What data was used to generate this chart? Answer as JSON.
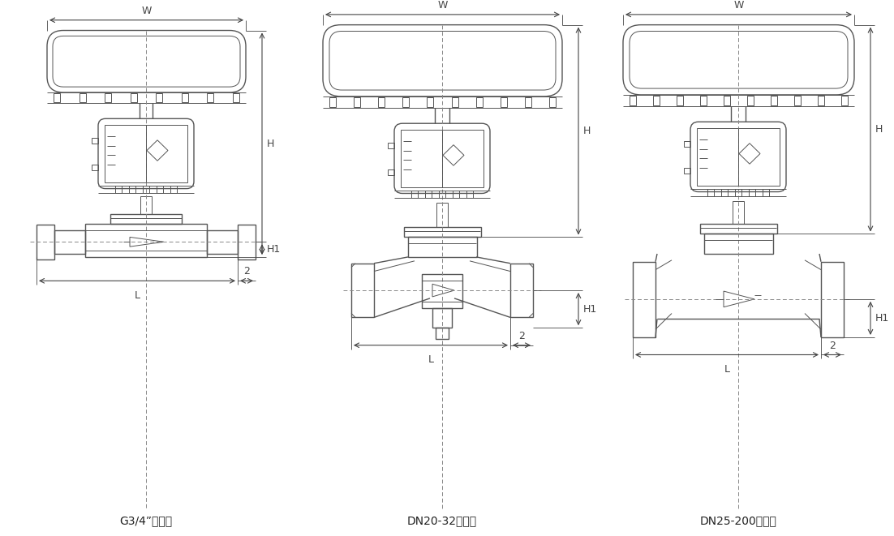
{
  "bg_color": "#ffffff",
  "line_color": "#555555",
  "dim_color": "#444444",
  "labels": [
    "G3/4”整体式",
    "DN20-32分离式",
    "DN25-200整体式"
  ],
  "dim_labels": [
    "W",
    "H",
    "H1",
    "L",
    "2"
  ],
  "centers": [
    180,
    545,
    910
  ],
  "fig_w": 11.02,
  "fig_h": 6.61,
  "dpi": 100
}
